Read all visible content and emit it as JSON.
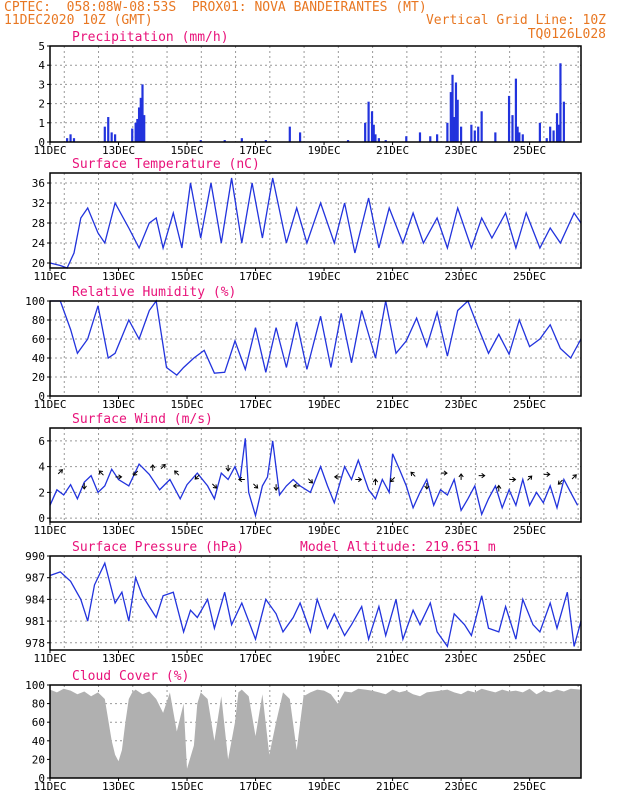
{
  "header": {
    "line1_left": "CPTEC:  058:08W-08:53S  PROX01: NOVA BANDEIRANTES (MT)",
    "line2_left": "11DEC2020 10Z (GMT)",
    "line2_right": "Vertical Grid Line: 10Z",
    "line3_right": "TQ0126L028"
  },
  "colors": {
    "header": "#e87722",
    "title": "#e8127a",
    "series": "#2233dd",
    "cloud": "#b0b0b0",
    "grid": "#999999"
  },
  "x_ticks": [
    "11DEC",
    "13DEC",
    "15DEC",
    "17DEC",
    "19DEC",
    "21DEC",
    "23DEC",
    "25DEC"
  ],
  "chart_data": [
    {
      "type": "bar",
      "title": "Precipitation (mm/h)",
      "x_range_days": [
        11,
        26.5
      ],
      "ylim": [
        0,
        5
      ],
      "yticks": [
        "0",
        "1",
        "2",
        "3",
        "4",
        "5"
      ],
      "x": [
        11.5,
        11.6,
        11.7,
        12.6,
        12.7,
        12.8,
        12.9,
        13.4,
        13.5,
        13.55,
        13.6,
        13.65,
        13.7,
        13.75,
        15.4,
        16.1,
        16.6,
        17.3,
        18.0,
        18.3,
        19.7,
        20.2,
        20.3,
        20.4,
        20.45,
        20.5,
        20.6,
        20.8,
        21.4,
        21.8,
        22.1,
        22.3,
        22.6,
        22.7,
        22.75,
        22.8,
        22.85,
        22.9,
        23.0,
        23.3,
        23.4,
        23.5,
        23.6,
        24.0,
        24.4,
        24.5,
        24.6,
        24.65,
        24.7,
        24.8,
        25.3,
        25.5,
        25.6,
        25.7,
        25.8,
        25.85,
        25.9,
        26.0
      ],
      "values": [
        0.2,
        0.4,
        0.2,
        0.8,
        1.3,
        0.5,
        0.4,
        0.7,
        1.0,
        1.2,
        1.8,
        2.3,
        3.0,
        1.4,
        0.1,
        0.1,
        0.2,
        0.1,
        0.8,
        0.5,
        0.1,
        1.0,
        2.1,
        1.6,
        0.9,
        0.4,
        0.2,
        0.1,
        0.3,
        0.5,
        0.3,
        0.4,
        1.0,
        2.6,
        3.5,
        1.3,
        3.1,
        2.2,
        0.8,
        0.9,
        0.6,
        0.8,
        1.6,
        0.5,
        2.4,
        1.4,
        3.3,
        0.8,
        0.5,
        0.4,
        1.0,
        0.2,
        0.8,
        0.6,
        1.5,
        0.9,
        4.1,
        2.1
      ]
    },
    {
      "type": "line",
      "title": "Surface Temperature (nC)",
      "x_range_days": [
        11,
        26.5
      ],
      "ylim": [
        19,
        38
      ],
      "yticks": [
        "20",
        "24",
        "28",
        "32",
        "36"
      ],
      "x": [
        11.0,
        11.3,
        11.5,
        11.7,
        11.9,
        12.1,
        12.4,
        12.6,
        12.9,
        13.3,
        13.6,
        13.9,
        14.1,
        14.3,
        14.6,
        14.85,
        15.1,
        15.4,
        15.7,
        16.0,
        16.3,
        16.6,
        16.9,
        17.2,
        17.5,
        17.9,
        18.2,
        18.5,
        18.9,
        19.3,
        19.6,
        19.9,
        20.3,
        20.6,
        20.9,
        21.3,
        21.6,
        21.9,
        22.3,
        22.6,
        22.9,
        23.3,
        23.6,
        23.9,
        24.3,
        24.6,
        24.9,
        25.3,
        25.6,
        25.9,
        26.3,
        26.5
      ],
      "values": [
        20,
        19.5,
        19,
        22,
        29,
        31,
        26,
        24,
        32,
        27,
        23,
        28,
        29,
        23,
        30,
        23,
        36,
        25,
        36,
        24,
        37,
        24,
        36,
        25,
        37,
        24,
        31,
        24,
        32,
        24,
        32,
        22,
        33,
        23,
        31,
        24,
        30,
        24,
        29,
        23,
        31,
        23,
        29,
        25,
        30,
        23,
        30,
        23,
        27,
        24,
        30,
        28
      ]
    },
    {
      "type": "line",
      "title": "Relative Humidity (%)",
      "x_range_days": [
        11,
        26.5
      ],
      "ylim": [
        0,
        100
      ],
      "yticks": [
        "0",
        "20",
        "40",
        "60",
        "80",
        "100"
      ],
      "x": [
        11.0,
        11.3,
        11.6,
        11.8,
        12.1,
        12.4,
        12.7,
        12.9,
        13.3,
        13.6,
        13.9,
        14.1,
        14.4,
        14.7,
        14.9,
        15.2,
        15.5,
        15.8,
        16.1,
        16.4,
        16.7,
        17.0,
        17.3,
        17.6,
        17.9,
        18.2,
        18.5,
        18.9,
        19.2,
        19.5,
        19.8,
        20.1,
        20.5,
        20.8,
        21.1,
        21.4,
        21.7,
        22.0,
        22.3,
        22.6,
        22.9,
        23.2,
        23.5,
        23.8,
        24.1,
        24.4,
        24.7,
        25.0,
        25.3,
        25.6,
        25.9,
        26.2,
        26.5
      ],
      "values": [
        100,
        100,
        70,
        45,
        60,
        95,
        40,
        45,
        80,
        60,
        90,
        100,
        30,
        22,
        30,
        40,
        48,
        24,
        25,
        58,
        28,
        72,
        25,
        72,
        30,
        78,
        28,
        84,
        30,
        87,
        35,
        90,
        40,
        100,
        45,
        58,
        82,
        52,
        88,
        42,
        90,
        100,
        72,
        45,
        65,
        44,
        80,
        52,
        60,
        75,
        50,
        40,
        60
      ]
    },
    {
      "type": "line",
      "title": "Surface Wind (m/s)",
      "x_range_days": [
        11,
        26.5
      ],
      "ylim": [
        -0.3,
        7
      ],
      "yticks": [
        "0",
        "2",
        "4",
        "6"
      ],
      "x": [
        11.0,
        11.2,
        11.4,
        11.6,
        11.8,
        12.0,
        12.2,
        12.4,
        12.6,
        12.8,
        13.0,
        13.3,
        13.6,
        13.9,
        14.2,
        14.5,
        14.8,
        15.0,
        15.3,
        15.6,
        15.8,
        16.0,
        16.2,
        16.4,
        16.55,
        16.7,
        16.8,
        17.0,
        17.2,
        17.35,
        17.5,
        17.7,
        17.9,
        18.1,
        18.3,
        18.6,
        18.9,
        19.1,
        19.3,
        19.6,
        19.8,
        20.0,
        20.3,
        20.5,
        20.7,
        20.9,
        21.0,
        21.2,
        21.4,
        21.6,
        21.8,
        22.0,
        22.2,
        22.4,
        22.6,
        22.8,
        23.0,
        23.2,
        23.4,
        23.6,
        23.8,
        24.0,
        24.2,
        24.4,
        24.6,
        24.8,
        25.0,
        25.2,
        25.4,
        25.6,
        25.8,
        26.0,
        26.2,
        26.4
      ],
      "values": [
        1.0,
        2.2,
        1.8,
        2.6,
        1.5,
        2.8,
        3.3,
        2.0,
        2.5,
        3.8,
        3.0,
        2.5,
        4.2,
        3.4,
        2.2,
        3.0,
        1.5,
        2.6,
        3.5,
        2.5,
        1.5,
        3.5,
        3.0,
        4.0,
        3.0,
        6.2,
        2.0,
        0.2,
        2.5,
        3.2,
        6.0,
        1.8,
        2.5,
        3.0,
        2.5,
        2.0,
        4.0,
        2.5,
        1.2,
        4.0,
        3.0,
        4.5,
        2.2,
        1.5,
        3.0,
        2.0,
        5.0,
        3.8,
        2.5,
        0.8,
        2.0,
        3.0,
        1.0,
        2.2,
        1.8,
        3.0,
        0.6,
        1.5,
        2.5,
        0.3,
        1.5,
        2.5,
        0.8,
        2.2,
        1.0,
        3.0,
        1.0,
        2.0,
        1.2,
        2.5,
        0.8,
        3.0,
        2.0,
        1.0
      ],
      "arrows": [
        {
          "x": 11.3,
          "y": 3.6,
          "dir": "ur"
        },
        {
          "x": 12.0,
          "y": 2.5,
          "dir": "d"
        },
        {
          "x": 12.5,
          "y": 3.5,
          "dir": "ul"
        },
        {
          "x": 13.0,
          "y": 3.2,
          "dir": "r"
        },
        {
          "x": 13.5,
          "y": 3.5,
          "dir": "dl"
        },
        {
          "x": 14.0,
          "y": 3.9,
          "dir": "u"
        },
        {
          "x": 14.3,
          "y": 4.0,
          "dir": "ur"
        },
        {
          "x": 14.7,
          "y": 3.5,
          "dir": "ul"
        },
        {
          "x": 15.3,
          "y": 3.2,
          "dir": "dl"
        },
        {
          "x": 15.8,
          "y": 2.5,
          "dir": "dr"
        },
        {
          "x": 16.2,
          "y": 3.9,
          "dir": "d"
        },
        {
          "x": 16.6,
          "y": 3.0,
          "dir": "l"
        },
        {
          "x": 17.0,
          "y": 2.5,
          "dir": "dr"
        },
        {
          "x": 17.6,
          "y": 2.4,
          "dir": "d"
        },
        {
          "x": 18.2,
          "y": 2.5,
          "dir": "l"
        },
        {
          "x": 18.6,
          "y": 2.9,
          "dir": "dr"
        },
        {
          "x": 19.4,
          "y": 3.2,
          "dir": "l"
        },
        {
          "x": 20.0,
          "y": 3.0,
          "dir": "r"
        },
        {
          "x": 20.5,
          "y": 2.8,
          "dir": "u"
        },
        {
          "x": 21.0,
          "y": 3.0,
          "dir": "dl"
        },
        {
          "x": 21.6,
          "y": 3.4,
          "dir": "ul"
        },
        {
          "x": 22.0,
          "y": 2.5,
          "dir": "d"
        },
        {
          "x": 22.5,
          "y": 3.5,
          "dir": "r"
        },
        {
          "x": 23.0,
          "y": 3.2,
          "dir": "u"
        },
        {
          "x": 23.6,
          "y": 3.3,
          "dir": "r"
        },
        {
          "x": 24.1,
          "y": 2.3,
          "dir": "u"
        },
        {
          "x": 24.5,
          "y": 3.0,
          "dir": "r"
        },
        {
          "x": 25.0,
          "y": 3.1,
          "dir": "ur"
        },
        {
          "x": 25.5,
          "y": 3.4,
          "dir": "r"
        },
        {
          "x": 25.9,
          "y": 2.8,
          "dir": "dl"
        },
        {
          "x": 26.3,
          "y": 3.2,
          "dir": "ur"
        }
      ]
    },
    {
      "type": "line",
      "title": "Surface Pressure (hPa)",
      "subtitle": "Model Altitude: 219.651 m",
      "x_range_days": [
        11,
        26.5
      ],
      "ylim": [
        977,
        990
      ],
      "yticks": [
        "978",
        "981",
        "984",
        "987",
        "990"
      ],
      "x": [
        11.0,
        11.3,
        11.6,
        11.9,
        12.1,
        12.3,
        12.6,
        12.9,
        13.1,
        13.3,
        13.5,
        13.7,
        13.9,
        14.1,
        14.3,
        14.6,
        14.9,
        15.1,
        15.3,
        15.6,
        15.8,
        16.1,
        16.3,
        16.6,
        16.8,
        17.0,
        17.3,
        17.6,
        17.8,
        18.1,
        18.3,
        18.6,
        18.8,
        19.1,
        19.3,
        19.6,
        19.8,
        20.1,
        20.3,
        20.6,
        20.8,
        21.1,
        21.3,
        21.6,
        21.8,
        22.1,
        22.3,
        22.6,
        22.8,
        23.1,
        23.3,
        23.6,
        23.8,
        24.1,
        24.3,
        24.6,
        24.8,
        25.1,
        25.3,
        25.6,
        25.8,
        26.1,
        26.3,
        26.5
      ],
      "values": [
        987.3,
        987.8,
        986.5,
        984.0,
        981.0,
        986.0,
        989.0,
        983.5,
        985.0,
        981.0,
        987.0,
        984.5,
        983.0,
        981.5,
        984.5,
        985.0,
        979.5,
        982.5,
        981.5,
        984.0,
        980.0,
        985.0,
        980.5,
        983.5,
        981.0,
        978.5,
        984.0,
        982.0,
        979.5,
        981.5,
        983.5,
        979.5,
        984.0,
        980.0,
        982.0,
        979.0,
        980.5,
        983.0,
        978.5,
        983.0,
        979.0,
        984.0,
        978.5,
        982.5,
        980.5,
        983.5,
        979.5,
        977.5,
        982.0,
        980.5,
        979.0,
        984.5,
        980.0,
        979.5,
        983.0,
        978.5,
        984.0,
        980.5,
        979.5,
        983.5,
        980.0,
        985.0,
        977.5,
        981.0
      ]
    },
    {
      "type": "area",
      "title": "Cloud Cover (%)",
      "x_range_days": [
        11,
        26.5
      ],
      "ylim": [
        0,
        100
      ],
      "yticks": [
        "0",
        "20",
        "40",
        "60",
        "80",
        "100"
      ],
      "x": [
        11.0,
        11.2,
        11.4,
        11.6,
        11.8,
        12.0,
        12.2,
        12.4,
        12.6,
        12.8,
        12.9,
        13.0,
        13.1,
        13.2,
        13.3,
        13.4,
        13.5,
        13.7,
        13.9,
        14.1,
        14.3,
        14.5,
        14.7,
        14.9,
        15.0,
        15.2,
        15.3,
        15.4,
        15.6,
        15.8,
        16.0,
        16.2,
        16.4,
        16.5,
        16.6,
        16.8,
        17.0,
        17.2,
        17.4,
        17.6,
        17.8,
        18.0,
        18.2,
        18.4,
        18.6,
        18.8,
        19.0,
        19.2,
        19.4,
        19.6,
        19.8,
        20.0,
        20.2,
        20.4,
        20.6,
        20.8,
        21.0,
        21.2,
        21.4,
        21.6,
        21.8,
        22.0,
        22.2,
        22.4,
        22.6,
        22.8,
        23.0,
        23.2,
        23.4,
        23.6,
        23.8,
        24.0,
        24.2,
        24.4,
        24.6,
        24.8,
        25.0,
        25.2,
        25.4,
        25.6,
        25.8,
        26.0,
        26.2,
        26.5
      ],
      "values": [
        95,
        92,
        96,
        94,
        90,
        93,
        88,
        92,
        85,
        40,
        25,
        18,
        30,
        60,
        85,
        92,
        95,
        90,
        93,
        85,
        70,
        92,
        50,
        80,
        10,
        35,
        80,
        92,
        85,
        40,
        88,
        20,
        60,
        92,
        95,
        88,
        45,
        90,
        25,
        60,
        92,
        85,
        30,
        88,
        92,
        95,
        94,
        90,
        80,
        93,
        92,
        96,
        95,
        94,
        92,
        90,
        95,
        92,
        94,
        90,
        88,
        92,
        93,
        94,
        95,
        92,
        90,
        94,
        92,
        96,
        94,
        92,
        95,
        93,
        94,
        92,
        96,
        90,
        94,
        92,
        95,
        93,
        96,
        95
      ]
    }
  ]
}
